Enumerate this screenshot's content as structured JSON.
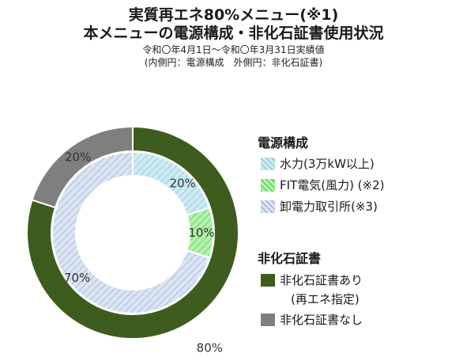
{
  "header": {
    "title_line1": "実質再エネ80%メニュー(※1)",
    "title_line2": "本メニューの電源構成・非化石証書使用状況",
    "period": "令和〇年4月1日～令和〇年3月31日実績値",
    "note": "(内側円：電源構成　外側円：非化石証書)"
  },
  "legend": {
    "power_heading": "電源構成",
    "power_items": [
      {
        "label": "水力(3万kW以上)"
      },
      {
        "label": "FIT電気(風力) (※2)"
      },
      {
        "label": "卸電力取引所(※3)"
      }
    ],
    "cert_heading": "非化石証書",
    "cert_items": [
      {
        "label": "非化石証書あり",
        "label2": "(再エネ指定)"
      },
      {
        "label": "非化石証書なし"
      }
    ]
  },
  "chart_data": [
    {
      "type": "pie",
      "name": "電源構成",
      "ring": "inner",
      "labels": [
        "水力(3万kW以上)",
        "FIT電気(風力) (※2)",
        "卸電力取引所(※3)"
      ],
      "values": [
        20,
        10,
        70
      ],
      "value_labels": [
        "20%",
        "10%",
        "70%"
      ],
      "colors": [
        "#bfe3ec",
        "#92e68c",
        "#c5d3ea"
      ]
    },
    {
      "type": "pie",
      "name": "非化石証書",
      "ring": "outer",
      "labels": [
        "非化石証書あり (再エネ指定)",
        "非化石証書なし"
      ],
      "values": [
        80,
        20
      ],
      "value_labels": [
        "80%",
        "20%"
      ],
      "colors": [
        "#3e5c1e",
        "#7f7f7f"
      ]
    }
  ]
}
